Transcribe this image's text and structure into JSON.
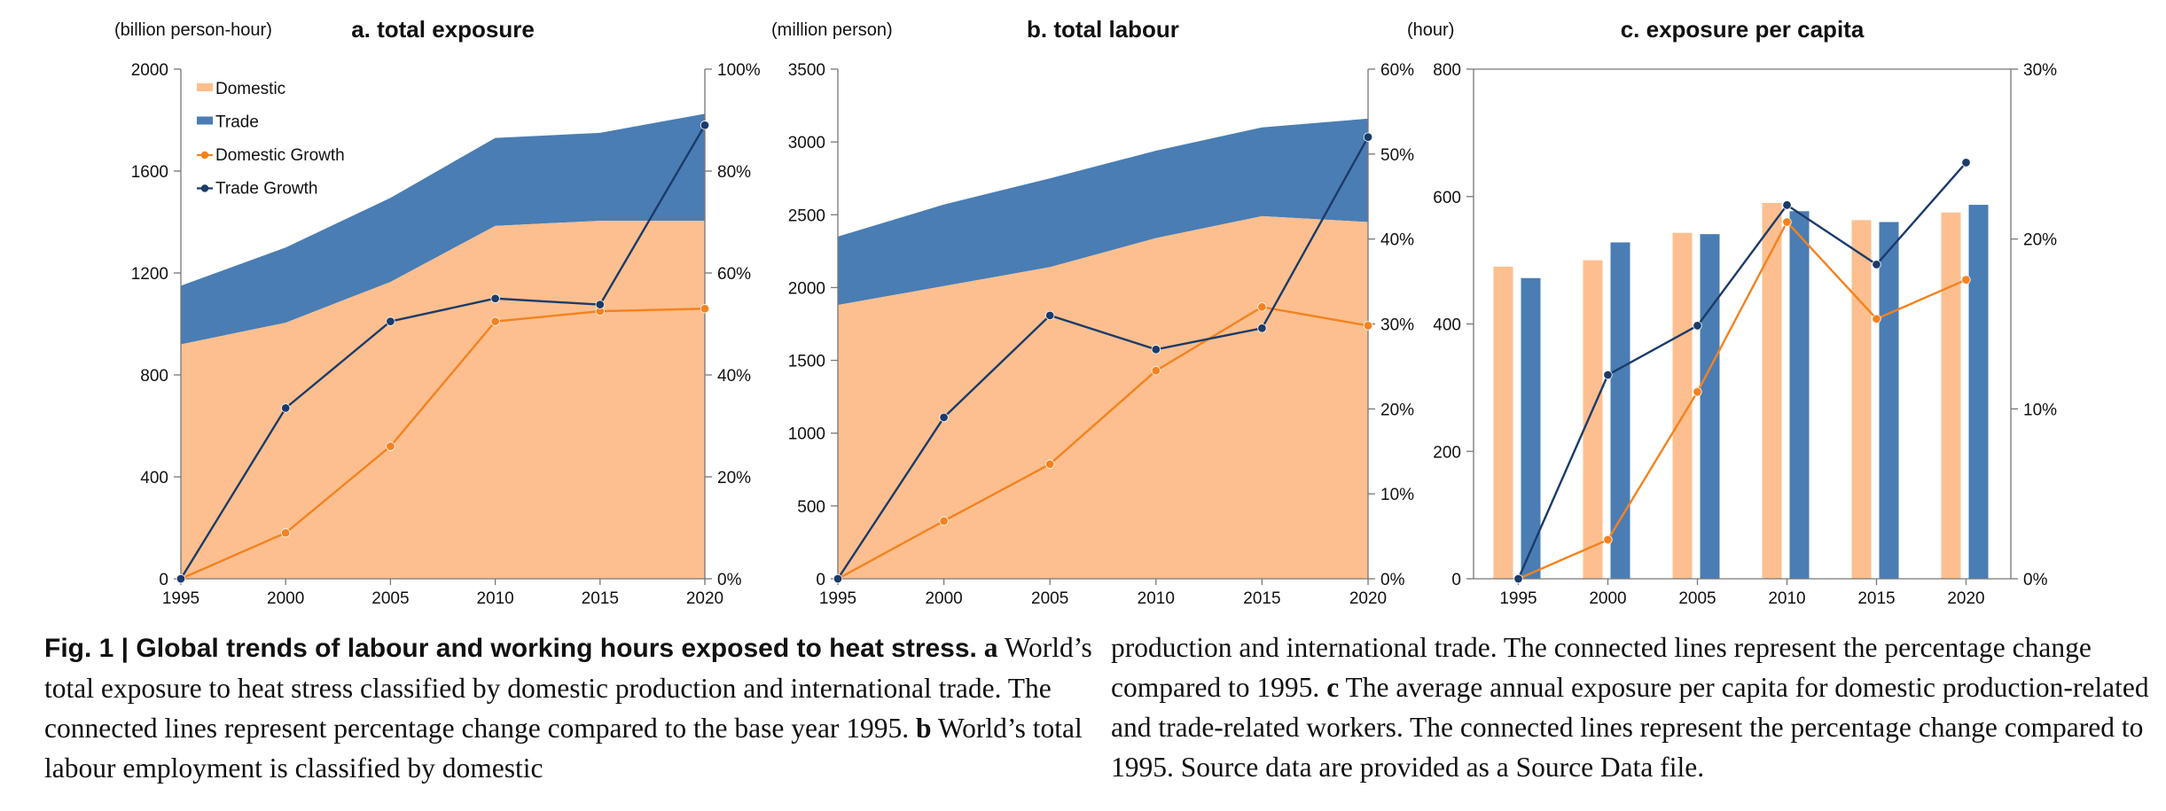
{
  "colors": {
    "domestic": "#FDBF8F",
    "trade": "#4A7DB3",
    "domestic_growth": "#F5821F",
    "trade_growth": "#1B3B6A",
    "axis": "#555555"
  },
  "chart_data": [
    {
      "type": "area",
      "title": "a. total exposure",
      "ylabel": "(billion person-hour)",
      "x": [
        1995,
        2000,
        2005,
        2010,
        2015,
        2020
      ],
      "ylim": [
        0,
        2000
      ],
      "yticks": [
        0,
        400,
        800,
        1200,
        1600,
        2000
      ],
      "y2lim": [
        0,
        100
      ],
      "y2ticks": [
        0,
        20,
        40,
        60,
        80,
        100
      ],
      "series": [
        {
          "name": "Domestic",
          "kind": "area",
          "values": [
            920,
            1005,
            1165,
            1385,
            1405,
            1405
          ]
        },
        {
          "name": "Trade",
          "kind": "area",
          "values": [
            230,
            295,
            330,
            345,
            345,
            420
          ]
        }
      ],
      "growth": [
        {
          "name": "Domestic Growth",
          "values": [
            0,
            9,
            26,
            50.5,
            52.5,
            53
          ]
        },
        {
          "name": "Trade Growth",
          "values": [
            0,
            33.5,
            50.5,
            55,
            53.8,
            89
          ]
        }
      ],
      "legend": [
        "Domestic",
        "Trade",
        "Domestic Growth",
        "Trade Growth"
      ],
      "legend_position": "top-left",
      "grid": false
    },
    {
      "type": "area",
      "title": "b. total labour",
      "ylabel": "(million person)",
      "x": [
        1995,
        2000,
        2005,
        2010,
        2015,
        2020
      ],
      "ylim": [
        0,
        3500
      ],
      "yticks": [
        0,
        500,
        1000,
        1500,
        2000,
        2500,
        3000,
        3500
      ],
      "y2lim": [
        0,
        60
      ],
      "y2ticks": [
        0,
        10,
        20,
        30,
        40,
        50,
        60
      ],
      "series": [
        {
          "name": "Domestic",
          "kind": "area",
          "values": [
            1880,
            2010,
            2140,
            2340,
            2490,
            2450
          ]
        },
        {
          "name": "Trade",
          "kind": "area",
          "values": [
            470,
            560,
            610,
            600,
            610,
            710
          ]
        }
      ],
      "growth": [
        {
          "name": "Domestic Growth",
          "values": [
            0,
            6.8,
            13.5,
            24.5,
            32,
            29.8
          ]
        },
        {
          "name": "Trade Growth",
          "values": [
            0,
            19,
            31,
            27,
            29.5,
            52
          ]
        }
      ],
      "grid": false
    },
    {
      "type": "bar",
      "title": "c. exposure per capita",
      "ylabel": "(hour)",
      "categories": [
        "1995",
        "2000",
        "2005",
        "2010",
        "2015",
        "2020"
      ],
      "ylim": [
        0,
        800
      ],
      "yticks": [
        0,
        200,
        400,
        600,
        800
      ],
      "y2lim": [
        0,
        30
      ],
      "y2ticks": [
        0,
        10,
        20,
        30
      ],
      "series": [
        {
          "name": "Domestic",
          "kind": "bar",
          "values": [
            490,
            500,
            543,
            590,
            563,
            575
          ]
        },
        {
          "name": "Trade",
          "kind": "bar",
          "values": [
            472,
            528,
            541,
            577,
            560,
            587
          ]
        }
      ],
      "growth": [
        {
          "name": "Domestic Growth",
          "values": [
            0,
            2.3,
            11,
            21,
            15.3,
            17.6
          ]
        },
        {
          "name": "Trade Growth",
          "values": [
            0,
            12,
            14.9,
            22,
            18.5,
            24.5
          ]
        }
      ],
      "grid": false
    }
  ],
  "caption": {
    "title": "Fig. 1 | Global trends of labour and working hours exposed to heat stress.",
    "a_label": "a",
    "a_text": " World’s total exposure to heat stress classified by domestic production and international trade. The connected lines represent percentage change compared to the base year 1995.",
    "b_label": "b",
    "b_text_left": " World’s total labour employment is classified by domestic",
    "b_text_right": "production and international trade. The connected lines represent the percentage change compared to 1995.",
    "c_label": "c",
    "c_text": " The average annual exposure per capita for domestic production-related and trade-related workers. The connected lines represent the percentage change compared to 1995. Source data are provided as a Source Data file."
  }
}
